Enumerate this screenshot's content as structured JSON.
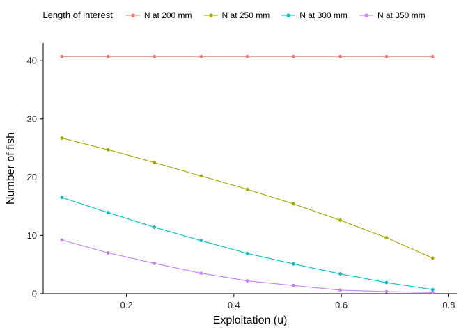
{
  "chart_data": {
    "type": "line",
    "title": "",
    "xlabel": "Exploitation (u)",
    "ylabel": "Number of fish",
    "legend_title": "Length of interest",
    "legend_position": "top",
    "grid": false,
    "background": "#ffffff",
    "axis_color": "#000000",
    "xlim": [
      0.045,
      0.815
    ],
    "ylim": [
      0,
      43
    ],
    "xticks": [
      0.2,
      0.4,
      0.6,
      0.8
    ],
    "yticks": [
      0,
      10,
      20,
      30,
      40
    ],
    "x": [
      0.08,
      0.166,
      0.252,
      0.339,
      0.425,
      0.511,
      0.598,
      0.684,
      0.77
    ],
    "series": [
      {
        "name": "N at 200 mm",
        "color": "#F8766D",
        "values": [
          40.7,
          40.7,
          40.7,
          40.7,
          40.7,
          40.7,
          40.7,
          40.7,
          40.7
        ]
      },
      {
        "name": "N at 250 mm",
        "color": "#A3A500",
        "values": [
          26.7,
          24.7,
          22.5,
          20.2,
          17.9,
          15.4,
          12.6,
          9.6,
          6.1
        ]
      },
      {
        "name": "N at 300 mm",
        "color": "#00BFC4",
        "values": [
          16.5,
          13.9,
          11.4,
          9.1,
          6.9,
          5.1,
          3.4,
          1.9,
          0.7
        ]
      },
      {
        "name": "N at 350 mm",
        "color": "#C77CFF",
        "values": [
          9.2,
          7.0,
          5.2,
          3.5,
          2.2,
          1.4,
          0.6,
          0.35,
          0.2
        ]
      }
    ]
  }
}
